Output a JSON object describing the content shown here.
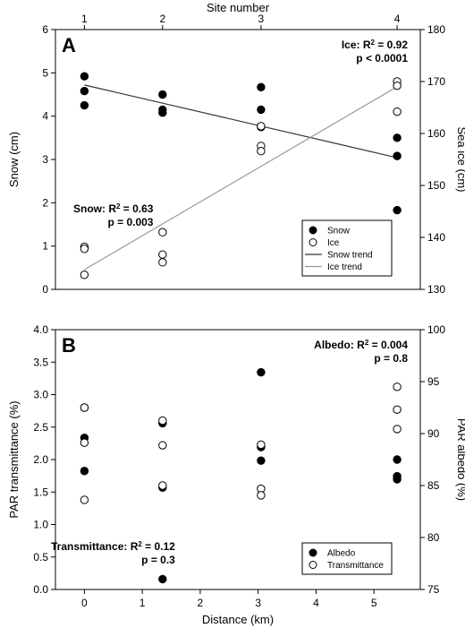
{
  "chart_data": [
    {
      "type": "scatter",
      "panel_label": "A",
      "top_axis": {
        "label": "Site number",
        "ticks": [
          "1",
          "2",
          "3",
          "4"
        ],
        "tick_positions_km": [
          0,
          1.35,
          3.05,
          5.4
        ]
      },
      "xlabel": "",
      "xlim": [
        -0.5,
        5.8
      ],
      "ylabel": "Snow (cm)",
      "ylim": [
        0,
        6
      ],
      "yticks": [
        "0",
        "1",
        "2",
        "3",
        "4",
        "5",
        "6"
      ],
      "y2label": "Sea ice (cm)",
      "y2lim": [
        130,
        180
      ],
      "y2ticks": [
        "130",
        "140",
        "150",
        "160",
        "170",
        "180"
      ],
      "series": [
        {
          "name": "Snow",
          "axis": "left",
          "marker": "filled",
          "x": [
            0,
            0,
            0,
            1.35,
            1.35,
            1.35,
            3.05,
            3.05,
            3.05,
            5.4,
            5.4,
            5.4
          ],
          "y": [
            4.92,
            4.58,
            4.25,
            4.5,
            4.15,
            4.08,
            4.67,
            4.15,
            3.75,
            3.5,
            3.08,
            1.83
          ]
        },
        {
          "name": "Ice",
          "axis": "right",
          "marker": "open",
          "x": [
            0,
            0,
            0,
            1.35,
            1.35,
            1.35,
            3.05,
            3.05,
            3.05,
            5.4,
            5.4,
            5.4
          ],
          "y": [
            138.2,
            137.8,
            132.8,
            141.0,
            136.7,
            135.2,
            157.6,
            156.6,
            161.4,
            170.0,
            169.2,
            164.2
          ]
        }
      ],
      "trend_lines": [
        {
          "name": "Snow trend",
          "axis": "left",
          "color": "#333333",
          "x": [
            0,
            5.4
          ],
          "y": [
            4.72,
            3.04
          ]
        },
        {
          "name": "Ice trend",
          "axis": "right",
          "color": "#999999",
          "x": [
            0,
            5.4
          ],
          "y": [
            133.8,
            169.0
          ]
        }
      ],
      "legend": {
        "placement": "lower-right",
        "entries": [
          "Snow",
          "Ice",
          "Snow trend",
          "Ice trend"
        ]
      },
      "annotations": [
        {
          "id": "ice",
          "prefix": "Ice: R",
          "sup": "2",
          "suffix": " = 0.92",
          "line2": "p < 0.0001"
        },
        {
          "id": "snow",
          "prefix": "Snow: R",
          "sup": "2",
          "suffix": " = 0.63",
          "line2": "p = 0.003"
        }
      ]
    },
    {
      "type": "scatter",
      "panel_label": "B",
      "xlabel": "Distance (km)",
      "xlim": [
        -0.5,
        5.8
      ],
      "xticks": [
        "0",
        "1",
        "2",
        "3",
        "4",
        "5"
      ],
      "ylabel": "PAR transmittance (%)",
      "ylim": [
        0,
        4
      ],
      "yticks": [
        "0.0",
        "0.5",
        "1.0",
        "1.5",
        "2.0",
        "2.5",
        "3.0",
        "3.5",
        "4.0"
      ],
      "y2label": "PAR albedo (%)",
      "y2lim": [
        75,
        100
      ],
      "y2ticks": [
        "75",
        "80",
        "85",
        "90",
        "95",
        "100"
      ],
      "series": [
        {
          "name": "Albedo",
          "axis": "right",
          "marker": "filled",
          "x": [
            0,
            0,
            0,
            1.35,
            1.35,
            1.35,
            3.05,
            3.05,
            3.05,
            5.4,
            5.4,
            5.4
          ],
          "y": [
            92.5,
            89.6,
            86.4,
            91.0,
            84.8,
            76.0,
            95.9,
            88.7,
            87.4,
            87.5,
            85.9,
            85.6
          ]
        },
        {
          "name": "Transmittance",
          "axis": "left",
          "marker": "open",
          "x": [
            0,
            0,
            0,
            1.35,
            1.35,
            1.35,
            3.05,
            3.05,
            3.05,
            5.4,
            5.4,
            5.4
          ],
          "y": [
            2.8,
            2.26,
            1.38,
            2.6,
            2.22,
            1.6,
            2.23,
            1.55,
            1.45,
            3.12,
            2.77,
            2.47
          ]
        }
      ],
      "legend": {
        "placement": "lower-right",
        "entries": [
          "Albedo",
          "Transmittance"
        ]
      },
      "annotations": [
        {
          "id": "albedo",
          "prefix": "Albedo: R",
          "sup": "2",
          "suffix": " = 0.004",
          "line2": "p = 0.8"
        },
        {
          "id": "transmittance",
          "prefix": "Transmittance: R",
          "sup": "2",
          "suffix": " = 0.12",
          "line2": "p = 0.3"
        }
      ]
    }
  ]
}
